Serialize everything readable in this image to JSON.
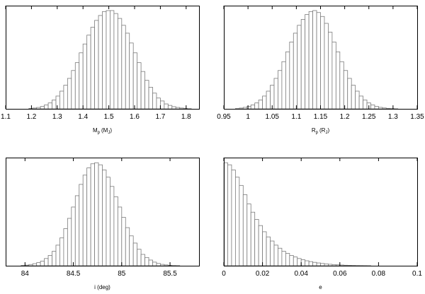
{
  "chart_data": [
    {
      "type": "bar",
      "xlabel_main": "M",
      "xlabel_sub": "p",
      "xlabel_unit_main": "(M",
      "xlabel_unit_sub": "J",
      "xlabel_unit_close": ")",
      "xlim": [
        1.1,
        1.85
      ],
      "ylim": [
        0,
        1.05
      ],
      "xticks": [
        "1.1",
        "1.2",
        "1.3",
        "1.4",
        "1.5",
        "1.6",
        "1.7",
        "1.8"
      ],
      "bin_start": 1.1,
      "bin_width": 0.015,
      "values": [
        0,
        0,
        0,
        0,
        0,
        0,
        0.004,
        0.008,
        0.014,
        0.024,
        0.04,
        0.06,
        0.09,
        0.13,
        0.18,
        0.24,
        0.31,
        0.39,
        0.47,
        0.57,
        0.66,
        0.75,
        0.83,
        0.9,
        0.95,
        0.99,
        1.0,
        1.0,
        0.97,
        0.92,
        0.85,
        0.77,
        0.67,
        0.57,
        0.47,
        0.38,
        0.29,
        0.22,
        0.16,
        0.11,
        0.08,
        0.05,
        0.035,
        0.022,
        0.014,
        0.008,
        0.005,
        0.002,
        0,
        0
      ]
    },
    {
      "type": "bar",
      "xlabel_main": "R",
      "xlabel_sub": "p",
      "xlabel_unit_main": "(R",
      "xlabel_unit_sub": "J",
      "xlabel_unit_close": ")",
      "xlim": [
        0.95,
        1.35
      ],
      "ylim": [
        0,
        1.05
      ],
      "xticks": [
        "0.95",
        "1",
        "1.05",
        "1.1",
        "1.15",
        "1.2",
        "1.25",
        "1.3",
        "1.35"
      ],
      "bin_start": 0.95,
      "bin_width": 0.008,
      "values": [
        0,
        0,
        0,
        0.003,
        0.008,
        0.015,
        0.025,
        0.04,
        0.06,
        0.09,
        0.13,
        0.18,
        0.24,
        0.31,
        0.39,
        0.48,
        0.58,
        0.68,
        0.77,
        0.85,
        0.91,
        0.96,
        0.99,
        1.0,
        0.98,
        0.94,
        0.87,
        0.78,
        0.68,
        0.58,
        0.48,
        0.39,
        0.31,
        0.24,
        0.18,
        0.13,
        0.09,
        0.06,
        0.04,
        0.025,
        0.015,
        0.009,
        0.005,
        0.003,
        0.001,
        0,
        0,
        0,
        0,
        0
      ]
    },
    {
      "type": "bar",
      "xlabel_main": "i (deg)",
      "xlim": [
        83.8,
        85.8
      ],
      "ylim": [
        0,
        1.05
      ],
      "xticks": [
        "84",
        "84.5",
        "85",
        "85.5"
      ],
      "bin_start": 83.8,
      "bin_width": 0.04,
      "values": [
        0,
        0,
        0,
        0,
        0.003,
        0.006,
        0.012,
        0.02,
        0.03,
        0.045,
        0.07,
        0.1,
        0.14,
        0.2,
        0.27,
        0.36,
        0.46,
        0.57,
        0.68,
        0.79,
        0.88,
        0.95,
        0.99,
        1.0,
        0.98,
        0.93,
        0.86,
        0.77,
        0.67,
        0.57,
        0.47,
        0.37,
        0.29,
        0.22,
        0.16,
        0.11,
        0.08,
        0.055,
        0.035,
        0.022,
        0.013,
        0.008,
        0.004,
        0.002,
        0.001,
        0,
        0,
        0,
        0,
        0
      ]
    },
    {
      "type": "bar",
      "xlabel_main": "e",
      "xlim": [
        0,
        0.1
      ],
      "ylim": [
        0,
        1.05
      ],
      "xticks": [
        "0",
        "0.02",
        "0.04",
        "0.06",
        "0.08",
        "0.1"
      ],
      "bin_start": 0,
      "bin_width": 0.002,
      "values": [
        1.0,
        0.98,
        0.93,
        0.86,
        0.78,
        0.69,
        0.6,
        0.52,
        0.45,
        0.39,
        0.33,
        0.28,
        0.24,
        0.2,
        0.17,
        0.14,
        0.12,
        0.1,
        0.085,
        0.07,
        0.058,
        0.048,
        0.04,
        0.033,
        0.027,
        0.022,
        0.018,
        0.014,
        0.011,
        0.009,
        0.007,
        0.005,
        0.004,
        0.003,
        0.002,
        0.0015,
        0.001,
        0.0005,
        0,
        0,
        0,
        0,
        0,
        0,
        0,
        0,
        0,
        0,
        0,
        0
      ]
    }
  ]
}
